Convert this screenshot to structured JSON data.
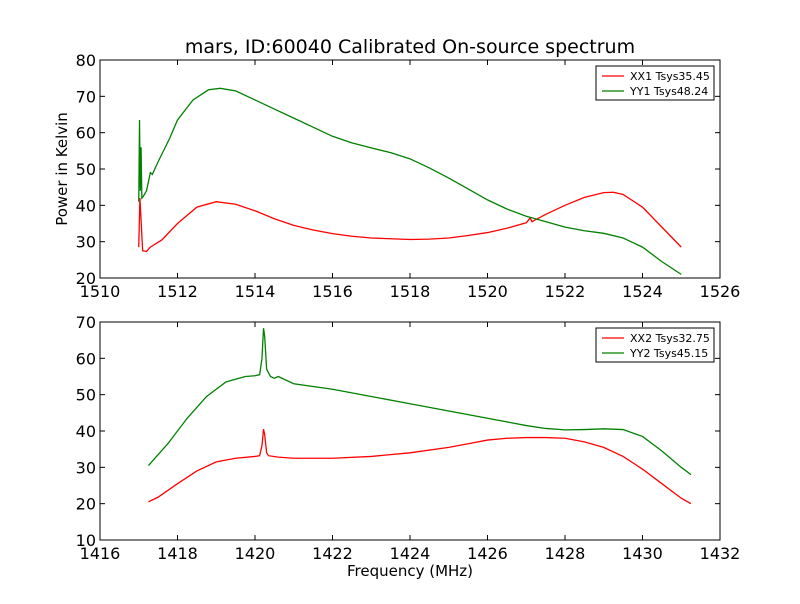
{
  "chart_data": [
    {
      "type": "line",
      "title": "mars, ID:60040 Calibrated On-source spectrum",
      "xlabel": "",
      "ylabel": "Power in Kelvin",
      "xlim": [
        1510,
        1526
      ],
      "ylim": [
        20,
        80
      ],
      "xticks": [
        "1510",
        "1512",
        "1514",
        "1516",
        "1518",
        "1520",
        "1522",
        "1524",
        "1526"
      ],
      "yticks": [
        "20",
        "30",
        "40",
        "50",
        "60",
        "70",
        "80"
      ],
      "legend_position": "top-right",
      "series": [
        {
          "name": "XX1 Tsys35.45",
          "color": "#ff0000",
          "x": [
            1511.0,
            1511.03,
            1511.06,
            1511.1,
            1511.2,
            1511.3,
            1511.6,
            1512.0,
            1512.5,
            1513.0,
            1513.5,
            1514.0,
            1514.5,
            1515.0,
            1515.5,
            1516.0,
            1516.5,
            1517.0,
            1517.5,
            1518.0,
            1518.5,
            1519.0,
            1519.5,
            1520.0,
            1520.5,
            1521.0,
            1521.1,
            1521.15,
            1521.2,
            1521.5,
            1522.0,
            1522.5,
            1523.0,
            1523.25,
            1523.5,
            1524.0,
            1524.5,
            1525.0
          ],
          "y": [
            28.5,
            42.0,
            36.0,
            27.5,
            27.3,
            28.5,
            30.5,
            35.0,
            39.5,
            41.0,
            40.3,
            38.5,
            36.3,
            34.5,
            33.2,
            32.2,
            31.5,
            31.0,
            30.8,
            30.6,
            30.7,
            31.0,
            31.7,
            32.5,
            33.7,
            35.2,
            36.5,
            35.5,
            35.8,
            37.5,
            40.0,
            42.2,
            43.5,
            43.6,
            43.0,
            39.5,
            34.0,
            28.5
          ]
        },
        {
          "name": "YY1 Tsys48.24",
          "color": "#008000",
          "x": [
            1511.0,
            1511.02,
            1511.04,
            1511.06,
            1511.08,
            1511.12,
            1511.2,
            1511.3,
            1511.35,
            1511.5,
            1511.8,
            1512.0,
            1512.4,
            1512.8,
            1513.1,
            1513.5,
            1514.0,
            1514.5,
            1515.0,
            1515.5,
            1516.0,
            1516.5,
            1517.0,
            1517.5,
            1518.0,
            1518.5,
            1519.0,
            1519.5,
            1520.0,
            1520.5,
            1521.0,
            1521.5,
            1522.0,
            1522.5,
            1523.0,
            1523.5,
            1524.0,
            1524.5,
            1525.0
          ],
          "y": [
            41.0,
            63.5,
            44.0,
            56.0,
            42.0,
            42.5,
            44.0,
            49.0,
            48.5,
            52.0,
            58.5,
            63.5,
            69.0,
            71.8,
            72.2,
            71.5,
            69.0,
            66.5,
            64.0,
            61.5,
            59.0,
            57.2,
            55.8,
            54.5,
            52.8,
            50.3,
            47.5,
            44.5,
            41.5,
            39.0,
            37.0,
            35.5,
            34.0,
            33.0,
            32.3,
            31.0,
            28.5,
            24.5,
            21.0
          ]
        }
      ]
    },
    {
      "type": "line",
      "title": "",
      "xlabel": "Frequency (MHz)",
      "ylabel": "",
      "xlim": [
        1416,
        1432
      ],
      "ylim": [
        10,
        70
      ],
      "xticks": [
        "1416",
        "1418",
        "1420",
        "1422",
        "1424",
        "1426",
        "1428",
        "1430",
        "1432"
      ],
      "yticks": [
        "10",
        "20",
        "30",
        "40",
        "50",
        "60",
        "70"
      ],
      "legend_position": "top-right",
      "series": [
        {
          "name": "XX2 Tsys32.75",
          "color": "#ff0000",
          "x": [
            1417.25,
            1417.5,
            1418.0,
            1418.5,
            1419.0,
            1419.5,
            1420.0,
            1420.12,
            1420.18,
            1420.22,
            1420.25,
            1420.3,
            1420.35,
            1420.6,
            1421.0,
            1422.0,
            1423.0,
            1424.0,
            1425.0,
            1425.5,
            1426.0,
            1426.5,
            1427.0,
            1427.5,
            1428.0,
            1428.5,
            1429.0,
            1429.5,
            1430.0,
            1430.5,
            1431.0,
            1431.25
          ],
          "y": [
            20.5,
            21.8,
            25.5,
            29.0,
            31.5,
            32.5,
            33.0,
            33.2,
            36.0,
            40.5,
            39.0,
            34.0,
            33.2,
            32.8,
            32.5,
            32.5,
            33.0,
            34.0,
            35.5,
            36.5,
            37.5,
            38.0,
            38.2,
            38.2,
            38.0,
            37.0,
            35.5,
            33.0,
            29.5,
            25.5,
            21.5,
            20.0
          ]
        },
        {
          "name": "YY2 Tsys45.15",
          "color": "#008000",
          "x": [
            1417.25,
            1417.75,
            1418.25,
            1418.75,
            1419.25,
            1419.75,
            1420.0,
            1420.12,
            1420.18,
            1420.22,
            1420.25,
            1420.3,
            1420.4,
            1420.5,
            1420.6,
            1421.0,
            1422.0,
            1423.0,
            1424.0,
            1425.0,
            1425.5,
            1426.0,
            1426.5,
            1427.0,
            1427.5,
            1428.0,
            1428.5,
            1429.0,
            1429.5,
            1430.0,
            1430.5,
            1431.0,
            1431.25
          ],
          "y": [
            30.5,
            36.5,
            43.5,
            49.5,
            53.5,
            55.0,
            55.2,
            55.5,
            60.0,
            68.3,
            66.0,
            57.0,
            55.0,
            54.5,
            55.0,
            53.0,
            51.5,
            49.5,
            47.5,
            45.5,
            44.5,
            43.5,
            42.5,
            41.5,
            40.7,
            40.3,
            40.4,
            40.6,
            40.4,
            38.5,
            34.5,
            30.0,
            28.0
          ]
        }
      ]
    }
  ]
}
